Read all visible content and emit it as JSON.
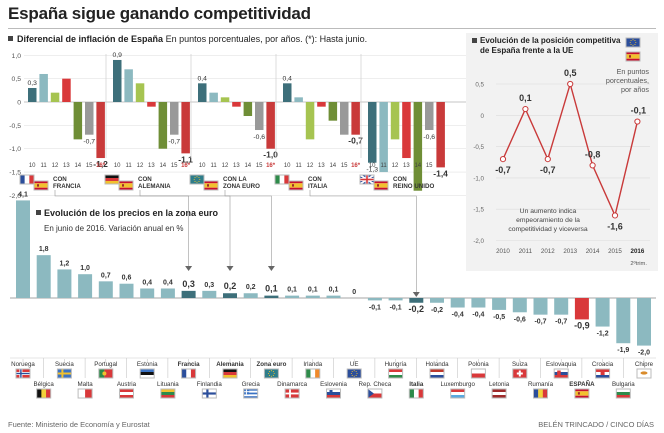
{
  "title": "España sigue ganando competitividad",
  "source": "Fuente: Ministerio de Economía y Eurostat",
  "author": "BELÉN TRINCADO / CINCO DÍAS",
  "colors": {
    "teal": "#8cb9c0",
    "teal_dark": "#3d6f7a",
    "red": "#d9383a",
    "light_red": "#e8706a",
    "green": "#a6c451",
    "dark_green": "#6f8e36",
    "yellow": "#f0d060",
    "gray": "#999999",
    "dark_gray": "#333333",
    "line_red": "#c93a3a"
  },
  "inflation_panel": {
    "title": "Diferencial de inflación de España",
    "subtitle": "En puntos porcentuales, por años. (*): Hasta junio."
  },
  "position_panel": {
    "title_line1": "Evolución de la posición competitiva",
    "title_line2": "de España frente a la UE",
    "unit_line1": "En puntos",
    "unit_line2": "porcentuales,",
    "unit_line3": "por años",
    "note_line1": "Un aumento indica",
    "note_line2": "empeoramiento de la",
    "note_line3": "competitividad y viceversa",
    "last_label_sub": "2ºtrim."
  },
  "prices_panel": {
    "title": "Evolución de los precios en la zona euro",
    "subtitle": "En junio de 2016. Variación anual en %"
  },
  "chart_data": [
    {
      "type": "bar",
      "title": "Diferencial de inflación de España",
      "subtitle": "En puntos porcentuales, por años. (*): Hasta junio.",
      "categories": [
        "10",
        "11",
        "12",
        "13",
        "14",
        "15",
        "16*"
      ],
      "ylim": [
        -2.0,
        1.0
      ],
      "yticks": [
        "1,0",
        "0,5",
        "0",
        "-0,5",
        "-1,0",
        "-1,5",
        "-2,0"
      ],
      "ytick_values": [
        1.0,
        0.5,
        0,
        -0.5,
        -1.0,
        -1.5,
        -2.0
      ],
      "series": [
        {
          "name": "CON FRANCIA",
          "name_line1": "CON",
          "name_line2": "FRANCIA",
          "values": [
            0.3,
            0.6,
            0.2,
            0.5,
            -0.8,
            -0.7,
            -1.2
          ],
          "labels": [
            "0,3",
            "",
            "",
            "",
            "",
            "-0,7",
            "-1,2"
          ]
        },
        {
          "name": "CON ALEMANIA",
          "name_line1": "CON",
          "name_line2": "ALEMANIA",
          "values": [
            0.9,
            0.7,
            0.4,
            -0.1,
            -1.0,
            -0.7,
            -1.1
          ],
          "labels": [
            "0,9",
            "",
            "",
            "",
            "",
            "-0,7",
            "-1,1"
          ]
        },
        {
          "name": "CON LA ZONA EURO",
          "name_line1": "CON LA",
          "name_line2": "ZONA EURO",
          "values": [
            0.4,
            0.2,
            0.1,
            -0.1,
            -0.3,
            -0.6,
            -1.0
          ],
          "labels": [
            "0,4",
            "",
            "",
            "",
            "",
            "-0,6",
            "-1,0"
          ]
        },
        {
          "name": "CON ITALIA",
          "name_line1": "CON",
          "name_line2": "ITALIA",
          "values": [
            0.4,
            0.1,
            -0.8,
            -0.1,
            -0.4,
            -0.7,
            -0.7
          ],
          "labels": [
            "0,4",
            "",
            "",
            "",
            "",
            "",
            "-0,7"
          ]
        },
        {
          "name": "CON REINO UNIDO",
          "name_line1": "CON",
          "name_line2": "REINO UNIDO",
          "values": [
            -1.3,
            -1.5,
            -0.8,
            -1.2,
            -1.9,
            -0.6,
            -1.4
          ],
          "labels": [
            "-1,3",
            "",
            "",
            "",
            "",
            "-0,6",
            "-1,4"
          ]
        }
      ]
    },
    {
      "type": "line",
      "title": "Evolución de la posición competitiva de España frente a la UE",
      "x": [
        "2010",
        "2011",
        "2012",
        "2013",
        "2014",
        "2015",
        "2016"
      ],
      "values": [
        -0.7,
        0.1,
        -0.7,
        0.5,
        -0.8,
        -1.6,
        -0.1
      ],
      "labels": [
        "-0,7",
        "0,1",
        "-0,7",
        "0,5",
        "-0,8",
        "-1,6",
        "-0,1"
      ],
      "ylim": [
        -2.0,
        0.5
      ],
      "yticks": [
        "0,5",
        "0",
        "-0,5",
        "-1,0",
        "-1,5",
        "-2,0"
      ],
      "ytick_values": [
        0.5,
        0,
        -0.5,
        -1.0,
        -1.5,
        -2.0
      ]
    },
    {
      "type": "bar",
      "title": "Evolución de los precios en la zona euro",
      "subtitle": "En junio de 2016. Variación anual en %",
      "categories": [
        "Noruega",
        "Bélgica",
        "Suecia",
        "Malta",
        "Portugal",
        "Austria",
        "Estonia",
        "Lituania",
        "Francia",
        "Finlandia",
        "Alemania",
        "Grecia",
        "Zona euro",
        "Dinamarca",
        "Irlanda",
        "Eslovenia",
        "UE",
        "Rep. Checa",
        "Hungría",
        "Italia",
        "Holanda",
        "Luxemburgo",
        "Polonia",
        "Letonia",
        "Suiza",
        "Rumanía",
        "Eslovaquia",
        "ESPAÑA",
        "Croacia",
        "Bulgaria",
        "Chipre"
      ],
      "values": [
        4.1,
        1.8,
        1.2,
        1.0,
        0.7,
        0.6,
        0.4,
        0.4,
        0.3,
        0.3,
        0.2,
        0.2,
        0.1,
        0.1,
        0.1,
        0.1,
        0.0,
        -0.1,
        -0.1,
        -0.2,
        -0.2,
        -0.4,
        -0.4,
        -0.5,
        -0.6,
        -0.7,
        -0.7,
        -0.9,
        -1.2,
        -1.9,
        -2.0
      ],
      "labels": [
        "4,1",
        "1,8",
        "1,2",
        "1,0",
        "0,7",
        "0,6",
        "0,4",
        "0,4",
        "0,3",
        "0,3",
        "0,2",
        "0,2",
        "0,1",
        "0,1",
        "0,1",
        "0,1",
        "0",
        "-0,1",
        "-0,1",
        "-0,2",
        "-0,2",
        "-0,4",
        "-0,4",
        "-0,5",
        "-0,6",
        "-0,7",
        "-0,7",
        "-0,9",
        "-1,2",
        "-1,9",
        "-2,0"
      ],
      "highlighted": [
        "Francia",
        "Alemania",
        "Zona euro",
        "Italia",
        "ESPAÑA"
      ]
    }
  ]
}
